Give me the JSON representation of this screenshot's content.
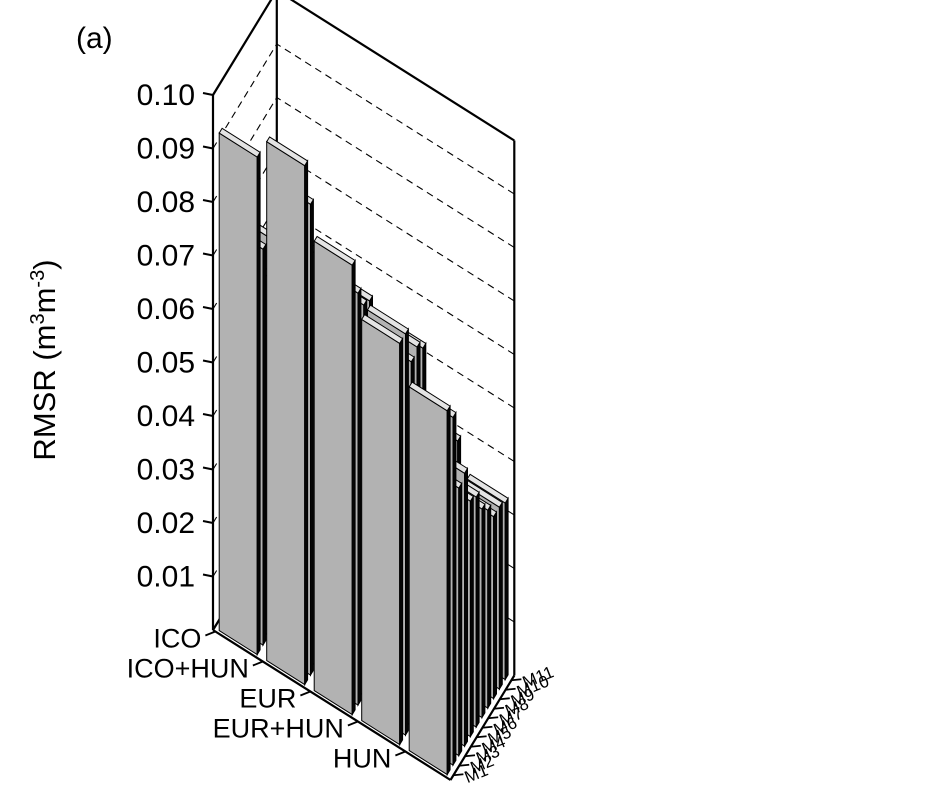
{
  "panel_label": "(a)",
  "chart_data": {
    "type": "bar3d",
    "title": "",
    "zlabel_main": "RMSR (m",
    "zlabel_sup1": "3",
    "zlabel_mid": "m",
    "zlabel_sup2": "-3",
    "zlabel_end": ")",
    "zlim": [
      0,
      0.1
    ],
    "zticks": [
      "0.01",
      "0.02",
      "0.03",
      "0.04",
      "0.05",
      "0.06",
      "0.07",
      "0.08",
      "0.09",
      "0.10"
    ],
    "x_categories": [
      "ICO",
      "ICO+HUN",
      "EUR",
      "EUR+HUN",
      "HUN"
    ],
    "y_categories": [
      "M1",
      "M2",
      "M3",
      "M4",
      "M5",
      "M6",
      "M7",
      "M8",
      "M9",
      "M10",
      "M11"
    ],
    "grid": true,
    "values": [
      [
        0.093,
        0.074,
        0.067,
        0.072,
        0.067,
        0.055,
        0.05,
        0.052,
        0.048,
        0.049,
        0.048
      ],
      [
        0.097,
        0.088,
        0.077,
        0.073,
        0.066,
        0.053,
        0.052,
        0.039,
        0.038,
        0.042,
        0.043
      ],
      [
        0.084,
        0.077,
        0.073,
        0.072,
        0.066,
        0.052,
        0.045,
        0.041,
        0.04,
        0.039,
        0.041
      ],
      [
        0.075,
        0.075,
        0.068,
        0.069,
        0.067,
        0.046,
        0.041,
        0.042,
        0.038,
        0.04,
        0.039
      ],
      [
        0.068,
        0.065,
        0.05,
        0.051,
        0.044,
        0.043,
        0.039,
        0.037,
        0.034,
        0.034,
        0.033
      ]
    ]
  }
}
